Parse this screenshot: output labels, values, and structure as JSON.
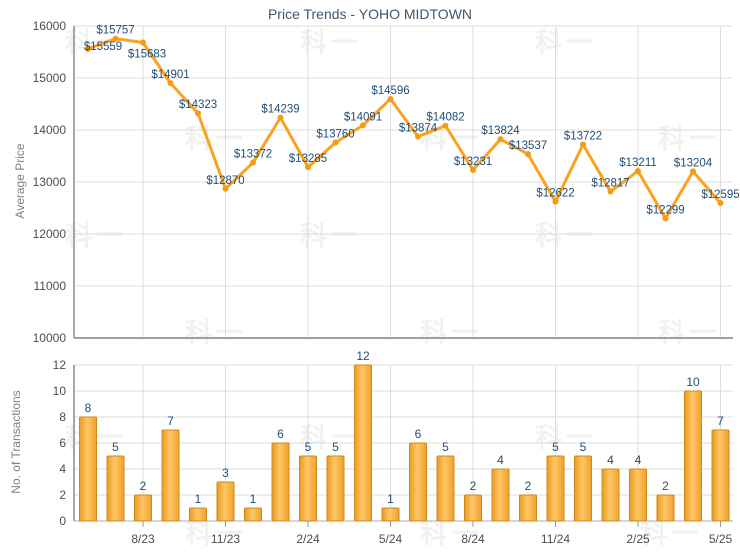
{
  "watermark": {
    "text": "科一"
  },
  "chart_data": [
    {
      "type": "line",
      "title": "Price Trends - YOHO MIDTOWN",
      "ylabel": "Average Price",
      "series": [
        {
          "name": "Average Price",
          "label_prefix": "$",
          "values": [
            15559,
            15757,
            15683,
            14901,
            14323,
            12870,
            13372,
            14239,
            13285,
            13760,
            14091,
            14596,
            13874,
            14082,
            13231,
            13824,
            13537,
            12622,
            13722,
            12817,
            13211,
            12299,
            13204,
            12595
          ]
        }
      ],
      "data_labels": [
        "$15559",
        "$15757",
        "$15683",
        "$14901",
        "$14323",
        "$12870",
        "$13372",
        "$14239",
        "$13285",
        "$13760",
        "$14091",
        "$14596",
        "$13874",
        "$14082",
        "$13231",
        "$13824",
        "$13537",
        "$12622",
        "$13722",
        "$12817",
        "$13211",
        "$12299",
        "$13204",
        "$12595"
      ],
      "ylim": [
        10000,
        16000
      ],
      "yticks": [
        16000,
        15000,
        14000,
        13000,
        12000,
        11000,
        10000
      ],
      "xtick_indices": [
        2,
        5,
        8,
        11,
        14,
        17,
        20,
        23
      ],
      "xtick_labels": [
        "8/23",
        "11/23",
        "2/24",
        "5/24",
        "8/24",
        "11/24",
        "2/25",
        "5/25"
      ],
      "grid": "both",
      "legend": "none",
      "colors": {
        "title": "#3e576f",
        "line": "#fba21f",
        "marker": "#f39c12",
        "data_label": "#234e75",
        "tick_label": "#4d4d4d",
        "axis_title": "#808080",
        "grid": "#dcdcdc",
        "axis_left": "#8c8c8c",
        "axis_bottom": "#a0a0a0"
      }
    },
    {
      "type": "bar",
      "ylabel": "No. of Transactions",
      "series": [
        {
          "name": "No. of Transactions",
          "values": [
            8,
            5,
            2,
            7,
            1,
            3,
            1,
            6,
            5,
            5,
            12,
            1,
            6,
            5,
            2,
            4,
            2,
            5,
            5,
            4,
            4,
            2,
            10,
            7
          ]
        }
      ],
      "ylim": [
        0,
        12
      ],
      "yticks": [
        12,
        10,
        8,
        6,
        4,
        2,
        0
      ],
      "xtick_indices": [
        2,
        5,
        8,
        11,
        14,
        17,
        20,
        23
      ],
      "xtick_labels": [
        "8/23",
        "11/23",
        "2/24",
        "5/24",
        "8/24",
        "11/24",
        "2/25",
        "5/25"
      ],
      "grid": "both",
      "legend": "none",
      "colors": {
        "bar_edge": "#eb9a21",
        "bar_center": "#fdc766",
        "bar_right": "#f0a12c",
        "bar_border": "#cd8a1a",
        "data_label": "#234e75",
        "tick_label": "#4d4d4d",
        "axis_title": "#808080",
        "grid": "#dcdcdc",
        "axis_left": "#8c8c8c",
        "axis_bottom": "#adadad",
        "tick_mark": "#999999"
      }
    }
  ]
}
